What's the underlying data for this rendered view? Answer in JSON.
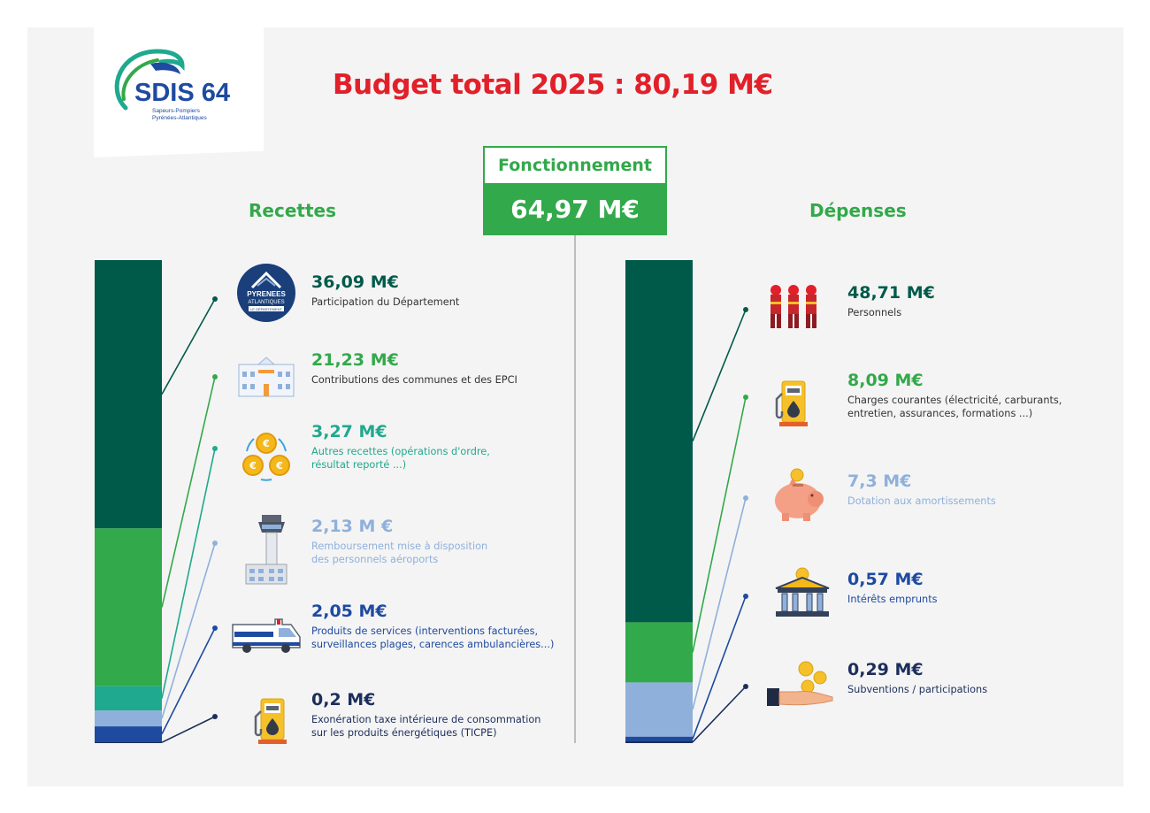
{
  "logo": {
    "name": "SDIS 64",
    "tagline_1": "Sapeurs-Pompiers",
    "tagline_2": "Pyrénées-Atlantiques"
  },
  "header": {
    "title": "Budget total 2025 : 80,19 M€",
    "section_label": "Fonctionnement",
    "section_total": "64,97 M€"
  },
  "departement_badge": {
    "line1": "PYRENEES",
    "line2": "ATLANTIQUES",
    "line3": "LE DÉPARTEMENT"
  },
  "colors": {
    "dark_green": "#005a4a",
    "green": "#32a94a",
    "teal": "#1fa98e",
    "light_blue": "#8fb0db",
    "blue": "#1e4aa0",
    "navy": "#1c2e5c",
    "title_red": "#e2202a"
  },
  "chart_data": [
    {
      "type": "bar",
      "stacked": true,
      "title": "Recettes",
      "unit": "M€",
      "series": [
        {
          "value": 36.09,
          "label": "36,09 M€",
          "description": [
            "Participation du Département"
          ],
          "color": "#005a4a",
          "icon": "departement-logo-icon"
        },
        {
          "value": 21.23,
          "label": "21,23 M€",
          "description": [
            "Contributions des communes et des EPCI"
          ],
          "color": "#32a94a",
          "icon": "town-hall-icon"
        },
        {
          "value": 3.27,
          "label": "3,27 M€",
          "description": [
            "Autres recettes (opérations d'ordre,",
            "résultat reporté ...)"
          ],
          "color": "#1fa98e",
          "icon": "euro-coins-cycle-icon"
        },
        {
          "value": 2.13,
          "label": "2,13 M €",
          "description": [
            "Remboursement mise à disposition",
            "des personnels aéroports"
          ],
          "color": "#8fb0db",
          "icon": "control-tower-icon"
        },
        {
          "value": 2.05,
          "label": "2,05 M€",
          "description": [
            "Produits de services (interventions facturées,",
            "surveillances plages, carences ambulancières...)"
          ],
          "color": "#1e4aa0",
          "icon": "ambulance-icon"
        },
        {
          "value": 0.2,
          "label": "0,2 M€",
          "description": [
            "Exonération taxe intérieure de consommation",
            "sur les produits énergétiques (TICPE)"
          ],
          "color": "#1c2e5c",
          "icon": "fuel-pump-icon"
        }
      ]
    },
    {
      "type": "bar",
      "stacked": true,
      "title": "Dépenses",
      "unit": "M€",
      "series": [
        {
          "value": 48.71,
          "label": "48,71 M€",
          "description": [
            "Personnels"
          ],
          "color": "#005a4a",
          "icon": "firefighters-icon"
        },
        {
          "value": 8.09,
          "label": "8,09 M€",
          "description": [
            "Charges courantes (électricité, carburants,",
            "entretien, assurances, formations ...)"
          ],
          "color": "#32a94a",
          "icon": "fuel-pump-icon"
        },
        {
          "value": 7.3,
          "label": "7,3 M€",
          "description": [
            "Dotation aux amortissements"
          ],
          "color": "#8fb0db",
          "icon": "piggy-bank-icon"
        },
        {
          "value": 0.57,
          "label": "0,57 M€",
          "description": [
            "Intérêts emprunts"
          ],
          "color": "#1e4aa0",
          "icon": "bank-icon"
        },
        {
          "value": 0.29,
          "label": "0,29 M€",
          "description": [
            "Subventions / participations"
          ],
          "color": "#1c2e5c",
          "icon": "hand-coins-icon"
        }
      ]
    }
  ]
}
